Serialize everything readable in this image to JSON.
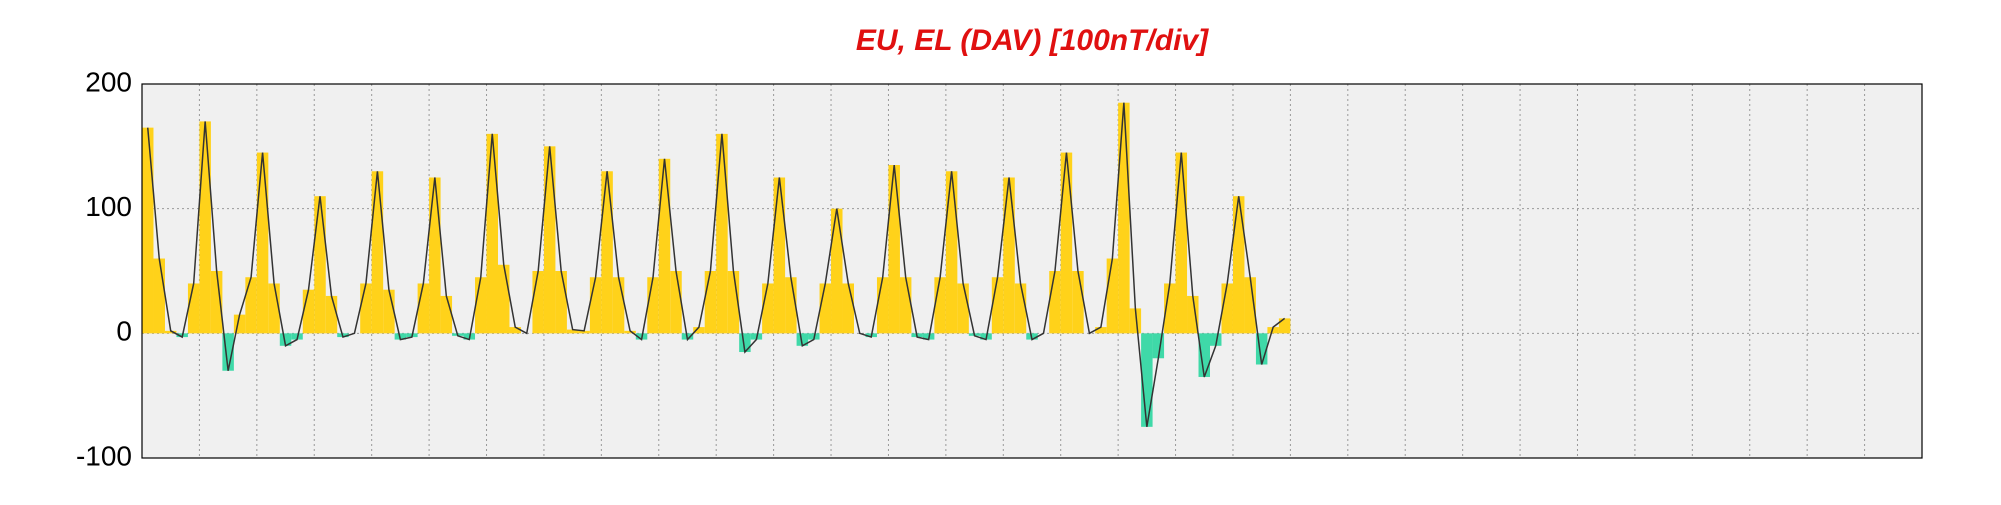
{
  "chart_data": {
    "type": "area-bar",
    "title": "EU, EL (DAV)  [100nT/div]",
    "xlim": [
      0,
      31
    ],
    "xticks": [
      0,
      1,
      2,
      3,
      4,
      5,
      6,
      7,
      8,
      9,
      10,
      11,
      12,
      13,
      14,
      15,
      16,
      17,
      18,
      19,
      20,
      21,
      22,
      23,
      24,
      25,
      26,
      27,
      28,
      29,
      30,
      31
    ],
    "ylim": [
      -100,
      200
    ],
    "yticks": [
      -100,
      0,
      100,
      200
    ],
    "grid": true,
    "line_color": "#333333",
    "positive_color": "#ffd21a",
    "negative_color": "#3fd9a8",
    "x": [
      0.1,
      0.3,
      0.5,
      0.7,
      0.9,
      1.1,
      1.3,
      1.5,
      1.7,
      1.9,
      2.1,
      2.3,
      2.5,
      2.7,
      2.9,
      3.1,
      3.3,
      3.5,
      3.7,
      3.9,
      4.1,
      4.3,
      4.5,
      4.7,
      4.9,
      5.1,
      5.3,
      5.5,
      5.7,
      5.9,
      6.1,
      6.3,
      6.5,
      6.7,
      6.9,
      7.1,
      7.3,
      7.5,
      7.7,
      7.9,
      8.1,
      8.3,
      8.5,
      8.7,
      8.9,
      9.1,
      9.3,
      9.5,
      9.7,
      9.9,
      10.1,
      10.3,
      10.5,
      10.7,
      10.9,
      11.1,
      11.3,
      11.5,
      11.7,
      11.9,
      12.1,
      12.3,
      12.5,
      12.7,
      12.9,
      13.1,
      13.3,
      13.5,
      13.7,
      13.9,
      14.1,
      14.3,
      14.5,
      14.7,
      14.9,
      15.1,
      15.3,
      15.5,
      15.7,
      15.9,
      16.1,
      16.3,
      16.5,
      16.7,
      16.9,
      17.1,
      17.3,
      17.5,
      17.7,
      17.9,
      18.1,
      18.3,
      18.5,
      18.7,
      18.9,
      19.1,
      19.3,
      19.5,
      19.7,
      19.9
    ],
    "values": [
      165,
      60,
      2,
      -3,
      40,
      170,
      50,
      -30,
      15,
      45,
      145,
      40,
      -10,
      -5,
      35,
      110,
      30,
      -3,
      0,
      40,
      130,
      35,
      -5,
      -3,
      40,
      125,
      30,
      -2,
      -5,
      45,
      160,
      55,
      5,
      0,
      50,
      150,
      50,
      3,
      2,
      45,
      130,
      45,
      2,
      -5,
      45,
      140,
      50,
      -5,
      5,
      50,
      160,
      50,
      -15,
      -5,
      40,
      125,
      45,
      -10,
      -5,
      40,
      100,
      40,
      0,
      -3,
      45,
      135,
      45,
      -3,
      -5,
      45,
      130,
      40,
      -2,
      -5,
      45,
      125,
      40,
      -5,
      0,
      50,
      145,
      50,
      0,
      5,
      60,
      185,
      20,
      -75,
      -20,
      40,
      145,
      30,
      -35,
      -10,
      40,
      110,
      45,
      -25,
      5,
      12
    ]
  }
}
